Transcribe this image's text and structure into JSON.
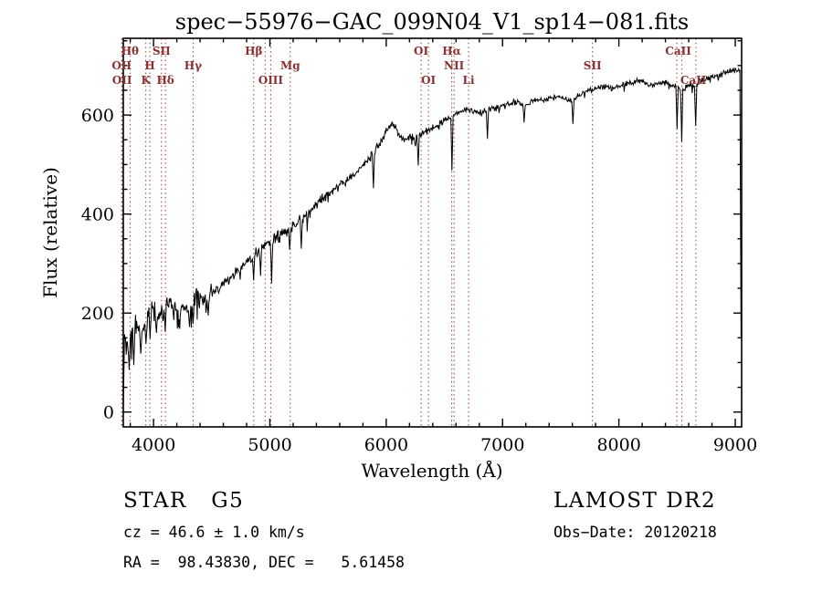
{
  "title": "spec−55976−GAC_099N04_V1_sp14−081.fits",
  "chart_data": {
    "type": "line",
    "title": "spec−55976−GAC_099N04_V1_sp14−081.fits",
    "xlabel": "Wavelength (Å)",
    "ylabel": "Flux (relative)",
    "xlim": [
      3740,
      9055
    ],
    "ylim": [
      -30,
      755
    ],
    "x_ticks": [
      4000,
      5000,
      6000,
      7000,
      8000,
      9000
    ],
    "y_ticks": [
      0,
      200,
      400,
      600
    ],
    "x_minor_step": 200,
    "y_minor_step": 50,
    "grid": false,
    "legend": "none",
    "line_color": "#000000",
    "marker_color": "#9b3a3a",
    "series": [
      {
        "name": "spectrum",
        "wl_start": 3750,
        "wl_step": 50,
        "flux": [
          155,
          150,
          172,
          168,
          192,
          204,
          196,
          210,
          219,
          206,
          214,
          209,
          224,
          231,
          226,
          241,
          249,
          259,
          271,
          281,
          291,
          301,
          312,
          324,
          336,
          346,
          351,
          361,
          366,
          376,
          386,
          396,
          406,
          419,
          431,
          441,
          451,
          461,
          466,
          476,
          486,
          499,
          511,
          526,
          546,
          566,
          586,
          566,
          549,
          553,
          559,
          563,
          566,
          573,
          581,
          589,
          597,
          602,
          608,
          612,
          607,
          605,
          609,
          615,
          613,
          618,
          622,
          627,
          623,
          620,
          627,
          632,
          629,
          633,
          637,
          638,
          631,
          627,
          639,
          646,
          651,
          653,
          659,
          656,
          654,
          658,
          662,
          664,
          669,
          667,
          662,
          660,
          665,
          668,
          661,
          656,
          649,
          664,
          656,
          669,
          673,
          677,
          681,
          685,
          688,
          691,
          689
        ]
      }
    ],
    "absorption_spikes": [
      [
        3742,
        2
      ],
      [
        3790,
        85
      ],
      [
        3832,
        95
      ],
      [
        3890,
        118
      ],
      [
        3935,
        138
      ],
      [
        3970,
        148
      ],
      [
        4026,
        160
      ],
      [
        4102,
        162
      ],
      [
        4226,
        168
      ],
      [
        4310,
        172
      ],
      [
        4340,
        178
      ],
      [
        4472,
        195
      ],
      [
        4861,
        266
      ],
      [
        4920,
        275
      ],
      [
        5015,
        260
      ],
      [
        5172,
        328
      ],
      [
        5268,
        330
      ],
      [
        5890,
        452
      ],
      [
        6276,
        498
      ],
      [
        6563,
        488
      ],
      [
        6870,
        552
      ],
      [
        7186,
        585
      ],
      [
        7605,
        582
      ],
      [
        8498,
        572
      ],
      [
        8542,
        546
      ],
      [
        8662,
        578
      ],
      [
        9048,
        148
      ]
    ],
    "marker_lines": [
      3726,
      3729,
      3798,
      3934,
      3968,
      4068,
      4102,
      4340,
      4861,
      4959,
      5007,
      5175,
      6300,
      6363,
      6563,
      6583,
      6708,
      7773,
      8498,
      8542,
      8662
    ],
    "spectral_lines": [
      {
        "label": "Hθ",
        "wl": 3798,
        "row": 1
      },
      {
        "label": "SII",
        "wl": 4068,
        "row": 1
      },
      {
        "label": "Hβ",
        "wl": 4861,
        "row": 1
      },
      {
        "label": "OI",
        "wl": 6300,
        "row": 1
      },
      {
        "label": "Hα",
        "wl": 6563,
        "row": 1
      },
      {
        "label": "CaII",
        "wl": 8510,
        "row": 1
      },
      {
        "label": "OII",
        "wl": 3726,
        "row": 2
      },
      {
        "label": "H",
        "wl": 3968,
        "row": 2
      },
      {
        "label": "Hγ",
        "wl": 4340,
        "row": 2
      },
      {
        "label": "Mg",
        "wl": 5175,
        "row": 2
      },
      {
        "label": "NII",
        "wl": 6583,
        "row": 2
      },
      {
        "label": "SII",
        "wl": 7773,
        "row": 2
      },
      {
        "label": "OII",
        "wl": 3729,
        "row": 3
      },
      {
        "label": "K",
        "wl": 3934,
        "row": 3
      },
      {
        "label": "Hδ",
        "wl": 4102,
        "row": 3
      },
      {
        "label": "OIII",
        "wl": 5007,
        "row": 3
      },
      {
        "label": "OI",
        "wl": 6363,
        "row": 3
      },
      {
        "label": "Li",
        "wl": 6708,
        "row": 3
      },
      {
        "label": "CaII",
        "wl": 8640,
        "row": 3
      }
    ]
  },
  "footer": {
    "class_label": "STAR   G5",
    "survey": "LAMOST DR2",
    "cz": "cz = 46.6 ± 1.0 km/s",
    "obs_date": "Obs−Date: 20120218",
    "coords": "RA =  98.43830, DEC =   5.61458"
  }
}
